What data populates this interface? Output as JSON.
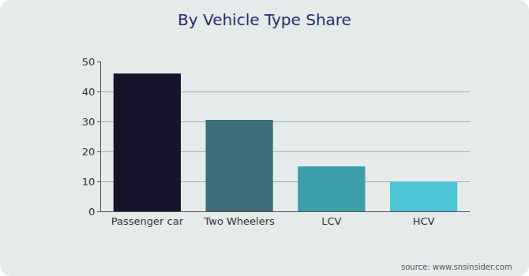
{
  "chart_data": {
    "type": "bar",
    "title": "By Vehicle Type Share",
    "categories": [
      "Passenger car",
      "Two Wheelers",
      "LCV",
      "HCV"
    ],
    "values": [
      46,
      30.5,
      15,
      9.8
    ],
    "colors": [
      "#16142b",
      "#3d6e7a",
      "#3e9eab",
      "#4ec5d4"
    ],
    "ylim": [
      0,
      50
    ],
    "yticks": [
      0,
      10,
      20,
      30,
      40,
      50
    ],
    "grid": true,
    "annotations": [
      "source: www.snsinsider.com"
    ]
  }
}
